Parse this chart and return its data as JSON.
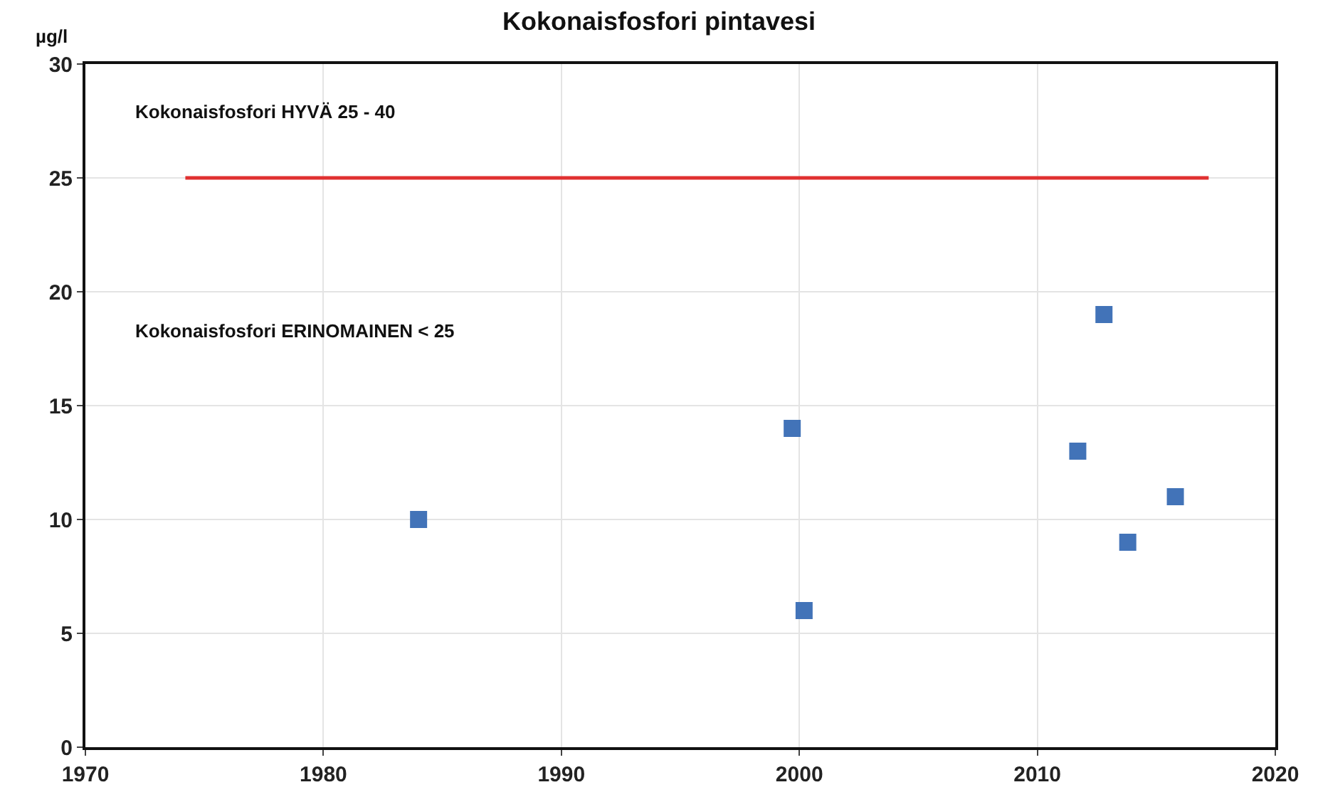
{
  "chart_data": {
    "type": "scatter",
    "title": "Kokonaisfosfori pintavesi",
    "ylabel": "µg/l",
    "xlim": [
      1970,
      2020
    ],
    "xticks": [
      1970,
      1980,
      1990,
      2000,
      2010,
      2020
    ],
    "ylim": [
      0,
      30
    ],
    "yticks": [
      0,
      5,
      10,
      15,
      20,
      25,
      30
    ],
    "grid": true,
    "marker": "square",
    "annotations": [
      "Kokonaisfosfori HYVÄ 25 - 40",
      "Kokonaisfosfori ERINOMAINEN < 25"
    ],
    "series": [
      {
        "color": "#4273b8",
        "x": [
          1984.0,
          1999.7,
          2000.2,
          2011.7,
          2012.8,
          2013.8,
          2015.8
        ],
        "values": [
          10,
          14,
          6,
          13,
          19,
          9,
          11
        ]
      },
      {
        "type": "line",
        "color": "#e03030",
        "marker": "none",
        "x": [
          1974.2,
          2017.2
        ],
        "values": [
          25,
          25
        ]
      }
    ]
  }
}
